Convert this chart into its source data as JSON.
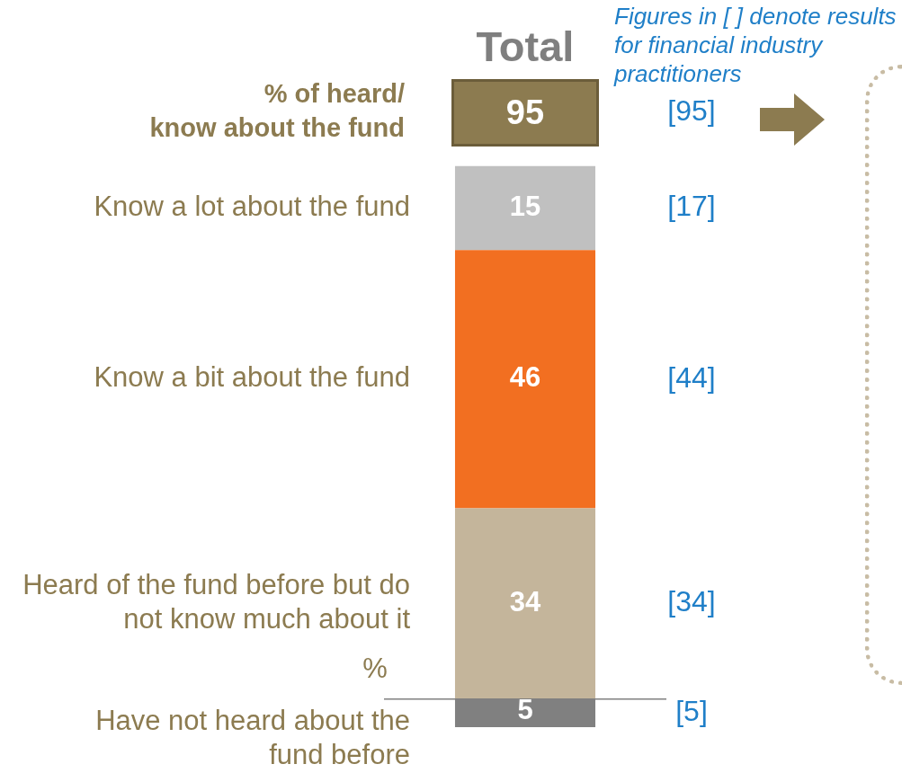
{
  "chart_data": {
    "type": "bar",
    "stacked": true,
    "ylabel": "%",
    "categories": [
      "Total"
    ],
    "ylim": [
      0,
      115
    ],
    "ref_lines": [
      {
        "axis": "y",
        "value": 5,
        "color": "#808080"
      }
    ],
    "series": [
      {
        "name": "Have not heard about the fund before",
        "color": "#808080",
        "values": [
          5
        ],
        "value_labels": [
          "5"
        ]
      },
      {
        "name": "Heard of the fund before but do not know much about it",
        "color": "#c4b59b",
        "values": [
          34
        ],
        "value_labels": [
          "34"
        ]
      },
      {
        "name": "Know a bit about the fund",
        "color": "#f26f21",
        "values": [
          46
        ],
        "value_labels": [
          "46"
        ]
      },
      {
        "name": "Know a lot about the fund",
        "color": "#c0c0c0",
        "values": [
          15
        ],
        "value_labels": [
          "15"
        ]
      }
    ],
    "annotations": [
      "% of heard/ know about the fund",
      "95",
      "Figures in [ ] denote results for financial industry practitioners",
      "[95]",
      "[17]",
      "[44]",
      "[34]",
      "[5]"
    ]
  }
}
